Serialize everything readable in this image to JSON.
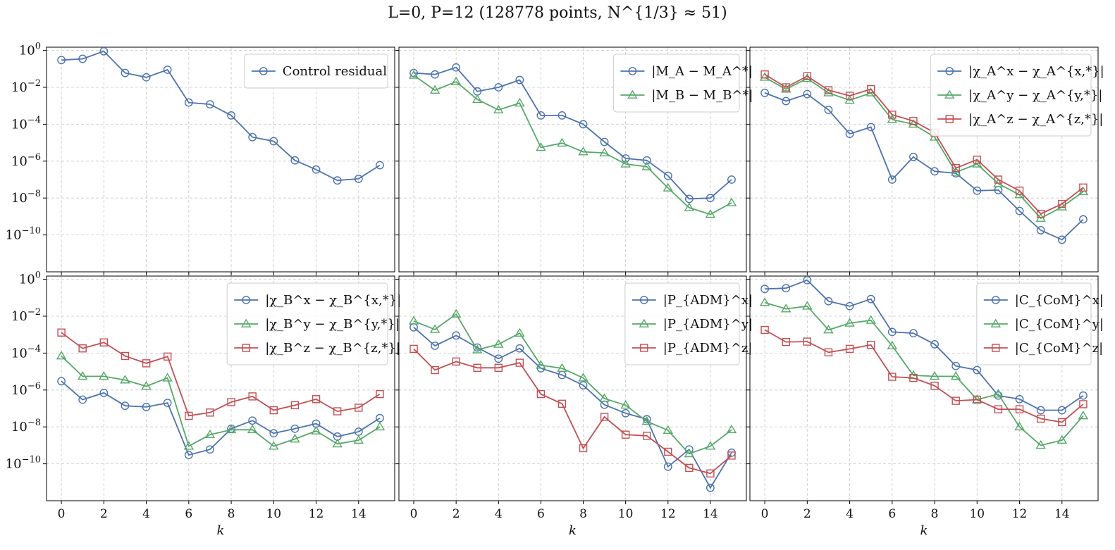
{
  "figure": {
    "title": "L=0, P=12 (128778 points, N^{1/3} ≈ 51)",
    "xlabel": "k"
  },
  "colors": {
    "blue": "#4c72b0",
    "green": "#55a868",
    "red": "#c44e52",
    "grid": "#c8c8c8"
  },
  "chart_data": [
    {
      "type": "line",
      "yscale": "log",
      "ylim": [
        1e-12,
        1.5
      ],
      "xlim": [
        -0.7,
        15.7
      ],
      "yticks": [
        0,
        -2,
        -4,
        -6,
        -8,
        -10
      ],
      "xticks": [
        0,
        2,
        4,
        6,
        8,
        10,
        12,
        14
      ],
      "grid": true,
      "legend": "top-right",
      "x": [
        0,
        1,
        2,
        3,
        4,
        5,
        6,
        7,
        8,
        9,
        10,
        11,
        12,
        13,
        14,
        15
      ],
      "series": [
        {
          "name": "Control residual",
          "color": "blue",
          "marker": "circle",
          "values": [
            0.3,
            0.35,
            0.9,
            0.06,
            0.035,
            0.09,
            0.0015,
            0.0012,
            0.0003,
            2e-05,
            1.2e-05,
            1.1e-06,
            3.5e-07,
            9e-08,
            1.1e-07,
            6e-07
          ]
        }
      ]
    },
    {
      "type": "line",
      "yscale": "log",
      "ylim": [
        1e-12,
        1.5
      ],
      "xlim": [
        -0.7,
        15.7
      ],
      "yticks": [
        0,
        -2,
        -4,
        -6,
        -8,
        -10
      ],
      "xticks": [
        0,
        2,
        4,
        6,
        8,
        10,
        12,
        14
      ],
      "grid": true,
      "legend": "top-right",
      "x": [
        0,
        1,
        2,
        3,
        4,
        5,
        6,
        7,
        8,
        9,
        10,
        11,
        12,
        13,
        14,
        15
      ],
      "series": [
        {
          "name": "|M_A − M_A^*|",
          "color": "blue",
          "marker": "circle",
          "values": [
            0.06,
            0.05,
            0.12,
            0.006,
            0.01,
            0.025,
            0.0003,
            0.0003,
            0.0001,
            1.1e-05,
            1.4e-06,
            1.1e-06,
            1.6e-07,
            9e-09,
            1e-08,
            1e-07
          ]
        },
        {
          "name": "|M_B − M_B^*|",
          "color": "green",
          "marker": "triangle",
          "values": [
            0.045,
            0.007,
            0.02,
            0.0022,
            0.0006,
            0.0014,
            5.5e-06,
            9.5e-06,
            3.2e-06,
            2.8e-06,
            7e-07,
            5e-07,
            3.5e-08,
            3e-09,
            1.3e-09,
            5.5e-09
          ]
        }
      ]
    },
    {
      "type": "line",
      "yscale": "log",
      "ylim": [
        1e-12,
        1.5
      ],
      "xlim": [
        -0.7,
        15.7
      ],
      "yticks": [
        0,
        -2,
        -4,
        -6,
        -8,
        -10
      ],
      "xticks": [
        0,
        2,
        4,
        6,
        8,
        10,
        12,
        14
      ],
      "grid": true,
      "legend": "top-right",
      "x": [
        0,
        1,
        2,
        3,
        4,
        5,
        6,
        7,
        8,
        9,
        10,
        11,
        12,
        13,
        14,
        15
      ],
      "series": [
        {
          "name": "|χ_A^x − χ_A^{x,*}|",
          "color": "blue",
          "marker": "circle",
          "values": [
            0.005,
            0.0018,
            0.0043,
            0.0006,
            3e-05,
            7e-05,
            1e-07,
            1.7e-06,
            2.8e-07,
            2.2e-07,
            2.5e-08,
            2.7e-08,
            2e-09,
            1.8e-10,
            5.5e-11,
            7e-10
          ]
        },
        {
          "name": "|χ_A^y − χ_A^{y,*}|",
          "color": "green",
          "marker": "triangle",
          "values": [
            0.035,
            0.008,
            0.03,
            0.005,
            0.002,
            0.005,
            0.00018,
            0.0001,
            2e-05,
            2.5e-07,
            7e-07,
            6e-08,
            1.5e-08,
            8e-10,
            3.3e-09,
            2.2e-08
          ]
        },
        {
          "name": "|χ_A^z − χ_A^{z,*}|",
          "color": "red",
          "marker": "square",
          "values": [
            0.05,
            0.01,
            0.04,
            0.007,
            0.0035,
            0.008,
            0.00033,
            0.00015,
            3.5e-05,
            4.2e-07,
            1.2e-06,
            1e-07,
            2.5e-08,
            1.4e-09,
            4.8e-09,
            3.7e-08
          ]
        }
      ]
    },
    {
      "type": "line",
      "yscale": "log",
      "ylim": [
        1e-12,
        1.5
      ],
      "xlim": [
        -0.7,
        15.7
      ],
      "yticks": [
        0,
        -2,
        -4,
        -6,
        -8,
        -10
      ],
      "xticks": [
        0,
        2,
        4,
        6,
        8,
        10,
        12,
        14
      ],
      "grid": true,
      "legend": "top-right",
      "x": [
        0,
        1,
        2,
        3,
        4,
        5,
        6,
        7,
        8,
        9,
        10,
        11,
        12,
        13,
        14,
        15
      ],
      "series": [
        {
          "name": "|χ_B^x − χ_B^{x,*}|",
          "color": "blue",
          "marker": "circle",
          "values": [
            3e-06,
            3e-07,
            7e-07,
            1.4e-07,
            1.2e-07,
            2e-07,
            3e-10,
            6e-10,
            8e-09,
            2.2e-08,
            4.5e-09,
            8e-09,
            1.5e-08,
            3e-09,
            5.5e-09,
            3e-08
          ]
        },
        {
          "name": "|χ_B^y − χ_B^{y,*}|",
          "color": "green",
          "marker": "triangle",
          "values": [
            7e-05,
            5.5e-06,
            5.5e-06,
            3.5e-06,
            1.6e-06,
            4.5e-06,
            9e-10,
            3.8e-09,
            7e-09,
            7e-09,
            9e-10,
            2.2e-09,
            6e-09,
            1.2e-09,
            1.9e-09,
            1e-08
          ]
        },
        {
          "name": "|χ_B^z − χ_B^{z,*}|",
          "color": "red",
          "marker": "square",
          "values": [
            0.0013,
            0.00018,
            0.00038,
            7e-05,
            2.8e-05,
            6.5e-05,
            4e-08,
            6e-08,
            2.2e-07,
            4.5e-07,
            8e-08,
            1.5e-07,
            3.2e-07,
            7e-08,
            1.1e-07,
            6e-07
          ]
        }
      ]
    },
    {
      "type": "line",
      "yscale": "log",
      "ylim": [
        1e-12,
        1.5
      ],
      "xlim": [
        -0.7,
        15.7
      ],
      "yticks": [
        0,
        -2,
        -4,
        -6,
        -8,
        -10
      ],
      "xticks": [
        0,
        2,
        4,
        6,
        8,
        10,
        12,
        14
      ],
      "grid": true,
      "legend": "top-right",
      "x": [
        0,
        1,
        2,
        3,
        4,
        5,
        6,
        7,
        8,
        9,
        10,
        11,
        12,
        13,
        14,
        15
      ],
      "series": [
        {
          "name": "|P_{ADM}^x|",
          "color": "blue",
          "marker": "circle",
          "values": [
            0.0025,
            0.00025,
            0.0009,
            0.0002,
            5e-05,
            0.00018,
            1.5e-05,
            6.5e-06,
            1.8e-06,
            1.6e-07,
            5.5e-08,
            2.6e-08,
            7e-11,
            6e-10,
            5e-12,
            4e-10
          ]
        },
        {
          "name": "|P_{ADM}^y|",
          "color": "green",
          "marker": "triangle",
          "values": [
            0.0055,
            0.0019,
            0.013,
            0.00015,
            0.0003,
            0.0012,
            2.2e-05,
            1.5e-05,
            4.5e-06,
            3.5e-07,
            1.5e-07,
            2e-08,
            6.5e-09,
            3.5e-10,
            9e-10,
            7e-09
          ]
        },
        {
          "name": "|P_{ADM}^z|",
          "color": "red",
          "marker": "square",
          "values": [
            0.00017,
            1.2e-05,
            3.5e-05,
            1.6e-05,
            1.6e-05,
            3e-05,
            6e-07,
            1.8e-07,
            7e-10,
            3.5e-08,
            3.8e-09,
            3.3e-09,
            4.5e-10,
            6e-11,
            3e-11,
            2.8e-10
          ]
        }
      ]
    },
    {
      "type": "line",
      "yscale": "log",
      "ylim": [
        1e-12,
        1.5
      ],
      "xlim": [
        -0.7,
        15.7
      ],
      "yticks": [
        0,
        -2,
        -4,
        -6,
        -8,
        -10
      ],
      "xticks": [
        0,
        2,
        4,
        6,
        8,
        10,
        12,
        14
      ],
      "grid": true,
      "legend": "top-right",
      "x": [
        0,
        1,
        2,
        3,
        4,
        5,
        6,
        7,
        8,
        9,
        10,
        11,
        12,
        13,
        14,
        15
      ],
      "series": [
        {
          "name": "|C_{CoM}^x|",
          "color": "blue",
          "marker": "circle",
          "values": [
            0.3,
            0.33,
            0.9,
            0.065,
            0.035,
            0.085,
            0.0014,
            0.0012,
            0.0003,
            2e-05,
            1.2e-05,
            5e-07,
            3.2e-07,
            8e-08,
            8e-08,
            5e-07
          ]
        },
        {
          "name": "|C_{CoM}^y|",
          "color": "green",
          "marker": "triangle",
          "values": [
            0.055,
            0.025,
            0.035,
            0.0018,
            0.0042,
            0.006,
            0.00025,
            6.2e-06,
            5.5e-06,
            5.5e-06,
            3e-07,
            6e-07,
            1e-08,
            1e-09,
            1.9e-09,
            4e-08
          ]
        },
        {
          "name": "|C_{CoM}^z|",
          "color": "red",
          "marker": "square",
          "values": [
            0.0018,
            0.0004,
            0.00042,
            0.00011,
            0.00017,
            0.00028,
            5.2e-06,
            4.5e-06,
            1.7e-06,
            2.6e-07,
            3e-07,
            9e-08,
            9e-08,
            2.8e-08,
            1.8e-08,
            1.7e-07
          ]
        }
      ]
    }
  ]
}
